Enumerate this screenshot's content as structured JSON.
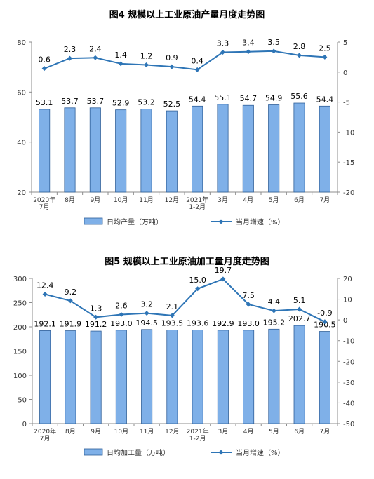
{
  "chart_data": [
    {
      "type": "bar",
      "title": "图4  规模以上工业原油产量月度走势图",
      "categories": [
        [
          "2020年",
          "7月"
        ],
        [
          "8月"
        ],
        [
          "9月"
        ],
        [
          "10月"
        ],
        [
          "11月"
        ],
        [
          "12月"
        ],
        [
          "2021年",
          "1-2月"
        ],
        [
          "3月"
        ],
        [
          "4月"
        ],
        [
          "5月"
        ],
        [
          "6月"
        ],
        [
          "7月"
        ]
      ],
      "series": [
        {
          "name": "日均产量（万吨）",
          "type": "bar",
          "axis": "left",
          "values": [
            53.1,
            53.7,
            53.7,
            52.9,
            53.2,
            52.5,
            54.4,
            55.1,
            54.7,
            54.9,
            55.6,
            54.4
          ],
          "color": "#7fb0e8"
        },
        {
          "name": "当月增速（%）",
          "type": "line",
          "axis": "right",
          "values": [
            0.6,
            2.3,
            2.4,
            1.4,
            1.2,
            0.9,
            0.4,
            3.3,
            3.4,
            3.5,
            2.8,
            2.5
          ],
          "color": "#2e75b6"
        }
      ],
      "y_left": {
        "ylim": [
          20,
          80
        ],
        "ticks": [
          20,
          40,
          60,
          80
        ]
      },
      "y_right": {
        "ylim": [
          -20,
          5
        ],
        "ticks": [
          5,
          0,
          -5,
          -10,
          -15,
          -20
        ]
      },
      "grid": false,
      "legend": "bottom"
    },
    {
      "type": "bar",
      "title": "图5  规模以上工业原油加工量月度走势图",
      "categories": [
        [
          "2020年",
          "7月"
        ],
        [
          "8月"
        ],
        [
          "9月"
        ],
        [
          "10月"
        ],
        [
          "11月"
        ],
        [
          "12月"
        ],
        [
          "2021年",
          "1-2月"
        ],
        [
          "3月"
        ],
        [
          "4月"
        ],
        [
          "5月"
        ],
        [
          "6月"
        ],
        [
          "7月"
        ]
      ],
      "series": [
        {
          "name": "日均加工量（万吨）",
          "type": "bar",
          "axis": "left",
          "values": [
            192.1,
            191.9,
            191.2,
            193.0,
            194.5,
            193.5,
            193.6,
            192.9,
            193.0,
            195.2,
            202.7,
            190.5
          ],
          "color": "#7fb0e8"
        },
        {
          "name": "当月增速（%）",
          "type": "line",
          "axis": "right",
          "values": [
            12.4,
            9.2,
            1.3,
            2.6,
            3.2,
            2.1,
            15.0,
            19.7,
            7.5,
            4.4,
            5.1,
            -0.9
          ],
          "color": "#2e75b6"
        }
      ],
      "y_left": {
        "ylim": [
          0,
          300
        ],
        "ticks": [
          0,
          50,
          100,
          150,
          200,
          250,
          300
        ]
      },
      "y_right": {
        "ylim": [
          -50,
          20
        ],
        "ticks": [
          20,
          10,
          0,
          -10,
          -20,
          -30,
          -40,
          -50
        ]
      },
      "grid": false,
      "legend": "bottom"
    }
  ]
}
